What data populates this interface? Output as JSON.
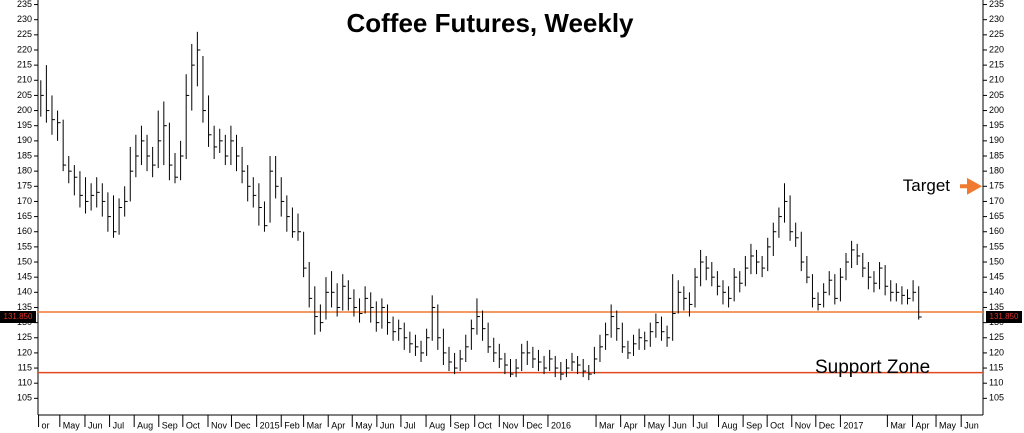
{
  "chart_data": {
    "type": "ohlc",
    "title": "Coffee Futures, Weekly",
    "color": "#000000",
    "xlim": [
      -0.5,
      168.5
    ],
    "ylim": [
      99.5,
      236.5
    ],
    "yticks": [
      105,
      110,
      115,
      120,
      125,
      130,
      135,
      140,
      145,
      150,
      155,
      160,
      165,
      170,
      175,
      180,
      185,
      190,
      195,
      200,
      205,
      210,
      215,
      220,
      225,
      230,
      235
    ],
    "xticks": [
      {
        "value": -0.4,
        "label": "or"
      },
      {
        "value": 3.4,
        "label": "May"
      },
      {
        "value": 7.9,
        "label": "Jun"
      },
      {
        "value": 12.3,
        "label": "Jul"
      },
      {
        "value": 16.7,
        "label": "Aug"
      },
      {
        "value": 21.1,
        "label": "Sep"
      },
      {
        "value": 25.4,
        "label": "Oct"
      },
      {
        "value": 29.9,
        "label": "Nov"
      },
      {
        "value": 34.1,
        "label": "Dec"
      },
      {
        "value": 38.6,
        "label": "2015"
      },
      {
        "value": 43.0,
        "label": "Feb"
      },
      {
        "value": 47.0,
        "label": "Mar"
      },
      {
        "value": 51.4,
        "label": "Apr"
      },
      {
        "value": 55.7,
        "label": "May"
      },
      {
        "value": 60.1,
        "label": "Jun"
      },
      {
        "value": 64.4,
        "label": "Jul"
      },
      {
        "value": 68.9,
        "label": "Aug"
      },
      {
        "value": 73.3,
        "label": "Sep"
      },
      {
        "value": 77.6,
        "label": "Oct"
      },
      {
        "value": 82.0,
        "label": "Nov"
      },
      {
        "value": 86.3,
        "label": "Dec"
      },
      {
        "value": 90.7,
        "label": "2016"
      },
      {
        "value": 99.3,
        "label": "Mar"
      },
      {
        "value": 103.7,
        "label": "Apr"
      },
      {
        "value": 108.0,
        "label": "May"
      },
      {
        "value": 112.4,
        "label": "Jun"
      },
      {
        "value": 116.7,
        "label": "Jul"
      },
      {
        "value": 121.2,
        "label": "Aug"
      },
      {
        "value": 125.6,
        "label": "Sep"
      },
      {
        "value": 129.9,
        "label": "Oct"
      },
      {
        "value": 134.3,
        "label": "Nov"
      },
      {
        "value": 138.6,
        "label": "Dec"
      },
      {
        "value": 143.0,
        "label": "2017"
      },
      {
        "value": 151.4,
        "label": "Mar"
      },
      {
        "value": 155.9,
        "label": "Apr"
      },
      {
        "value": 160.1,
        "label": "May"
      },
      {
        "value": 164.6,
        "label": "Jun"
      }
    ],
    "high": [
      210,
      215,
      205,
      200,
      197,
      185,
      182,
      180,
      178,
      176,
      178,
      176,
      173,
      172,
      171,
      175,
      188,
      192,
      195,
      192,
      188,
      200,
      203,
      196,
      186,
      190,
      212,
      222,
      226,
      218,
      205,
      195,
      194,
      192,
      195,
      192,
      188,
      182,
      178,
      176,
      170,
      185,
      185,
      178,
      172,
      168,
      166,
      160,
      150,
      142,
      136,
      145,
      147,
      143,
      146,
      144,
      141,
      138,
      142,
      140,
      137,
      138,
      136,
      132,
      131,
      130,
      127,
      126,
      124,
      128,
      139,
      136,
      128,
      122,
      120,
      121,
      126,
      131,
      138,
      134,
      130,
      125,
      123,
      120,
      118,
      118,
      123,
      124,
      122,
      121,
      119,
      121,
      119,
      117,
      118,
      120,
      119,
      118,
      116,
      122,
      126,
      130,
      136,
      134,
      130,
      124,
      126,
      128,
      127,
      130,
      133,
      132,
      129,
      146,
      144,
      142,
      140,
      148,
      154,
      152,
      150,
      147,
      144,
      142,
      148,
      147,
      152,
      156,
      154,
      152,
      158,
      163,
      168,
      176,
      172,
      163,
      160,
      152,
      146,
      140,
      143,
      147,
      146,
      148,
      153,
      157,
      156,
      153,
      150,
      147,
      150,
      149,
      144,
      143,
      142,
      141,
      144,
      142
    ],
    "low": [
      198,
      196,
      192,
      190,
      180,
      176,
      172,
      168,
      166,
      167,
      168,
      165,
      160,
      158,
      159,
      165,
      170,
      178,
      182,
      180,
      178,
      181,
      182,
      177,
      176,
      177,
      184,
      200,
      208,
      196,
      188,
      184,
      186,
      182,
      182,
      180,
      176,
      170,
      168,
      162,
      160,
      163,
      171,
      165,
      160,
      158,
      157,
      145,
      135,
      126,
      127,
      131,
      135,
      132,
      134,
      134,
      132,
      130,
      133,
      130,
      127,
      128,
      126,
      124,
      124,
      121,
      120,
      119,
      117,
      119,
      124,
      121,
      116,
      114,
      113,
      114,
      117,
      121,
      126,
      124,
      120,
      117,
      115,
      113,
      112,
      112,
      114,
      116,
      115,
      114,
      113,
      114,
      112,
      111,
      112,
      114,
      113,
      112,
      111,
      113,
      117,
      121,
      125,
      124,
      120,
      118,
      119,
      121,
      121,
      122,
      125,
      124,
      122,
      124,
      133,
      134,
      132,
      135,
      142,
      144,
      142,
      139,
      136,
      135,
      137,
      140,
      142,
      146,
      146,
      145,
      147,
      152,
      158,
      163,
      157,
      155,
      147,
      143,
      135,
      134,
      135,
      139,
      136,
      137,
      144,
      148,
      149,
      145,
      141,
      140,
      141,
      139,
      137,
      137,
      136,
      136,
      137,
      131
    ],
    "close": [
      205,
      200,
      197,
      196,
      182,
      180,
      178,
      172,
      170,
      172,
      173,
      170,
      165,
      160,
      168,
      170,
      180,
      185,
      190,
      185,
      182,
      190,
      195,
      182,
      178,
      185,
      205,
      215,
      220,
      200,
      192,
      188,
      190,
      185,
      190,
      185,
      180,
      175,
      172,
      168,
      162,
      180,
      175,
      170,
      165,
      160,
      160,
      148,
      138,
      132,
      130,
      140,
      140,
      135,
      142,
      138,
      135,
      133,
      138,
      135,
      130,
      135,
      130,
      127,
      128,
      125,
      123,
      122,
      120,
      125,
      135,
      125,
      120,
      117,
      115,
      118,
      122,
      128,
      132,
      128,
      122,
      120,
      118,
      116,
      113,
      115,
      120,
      120,
      118,
      117,
      115,
      118,
      115,
      113,
      115,
      117,
      116,
      114,
      113,
      118,
      122,
      126,
      132,
      128,
      122,
      120,
      123,
      125,
      124,
      127,
      130,
      127,
      125,
      133,
      140,
      138,
      136,
      145,
      150,
      148,
      145,
      142,
      140,
      138,
      145,
      143,
      148,
      152,
      150,
      148,
      155,
      160,
      165,
      170,
      160,
      158,
      150,
      145,
      138,
      136,
      140,
      144,
      138,
      145,
      150,
      154,
      152,
      148,
      145,
      143,
      148,
      142,
      140,
      140,
      139,
      138,
      140,
      131.85
    ],
    "last_price": {
      "value": 131.85,
      "label": "131.850"
    },
    "hlines": [
      {
        "value": 133.5,
        "color": "#f07a30"
      },
      {
        "value": 113.5,
        "color": "#e04a20"
      }
    ],
    "annotations": [
      {
        "text": "Target",
        "value": 175
      },
      {
        "text": "Support Zone",
        "value": 125
      }
    ]
  }
}
